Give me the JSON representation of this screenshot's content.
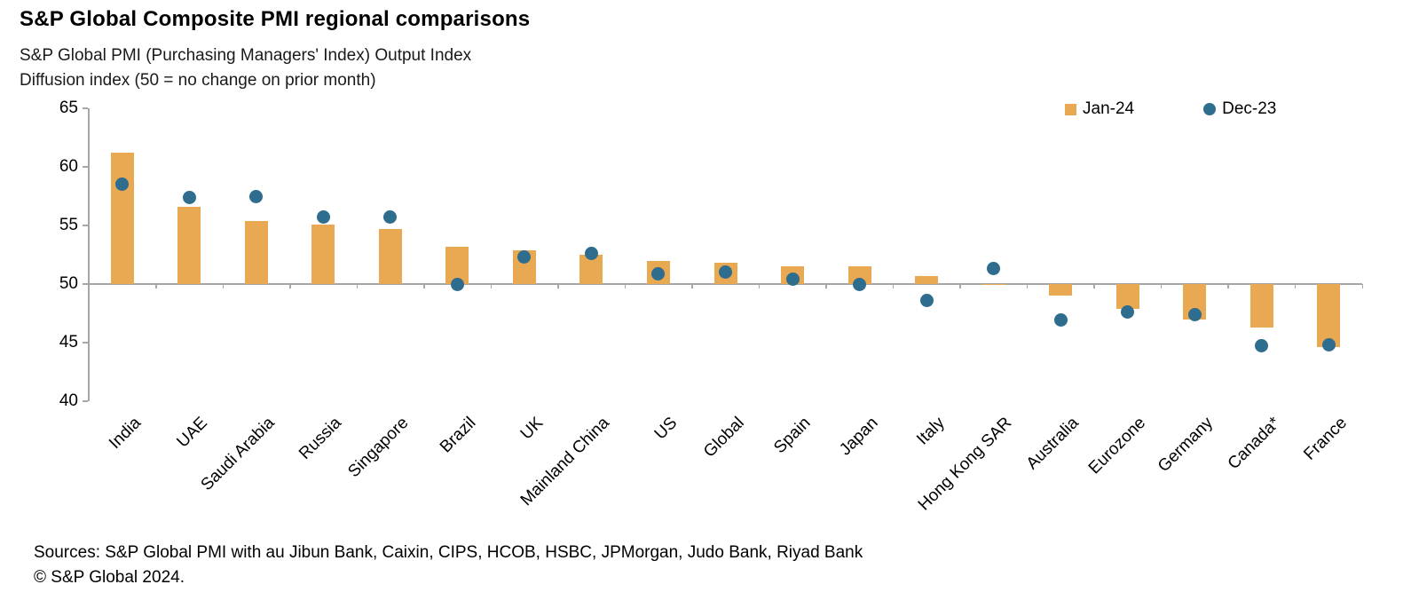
{
  "title": "S&P Global Composite PMI regional comparisons",
  "subtitle1": "S&P Global PMI (Purchasing Managers' Index) Output Index",
  "subtitle2": "Diffusion index (50 = no change on prior month)",
  "legend": {
    "series1_label": "Jan-24",
    "series2_label": "Dec-23"
  },
  "footer": {
    "sources": "Sources: S&P Global PMI with au Jibun Bank, Caixin, CIPS, HCOB, HSBC, JPMorgan, Judo Bank, Riyad Bank",
    "copyright": "© S&P Global 2024."
  },
  "colors": {
    "bar": "#E9A852",
    "dot": "#2E6D8E",
    "axis": "#A6A6A6"
  },
  "chart_data": {
    "type": "bar",
    "baseline": 50,
    "categories": [
      "India",
      "UAE",
      "Saudi Arabia",
      "Russia",
      "Singapore",
      "Brazil",
      "UK",
      "Mainland China",
      "US",
      "Global",
      "Spain",
      "Japan",
      "Italy",
      "Hong Kong SAR",
      "Australia",
      "Eurozone",
      "Germany",
      "Canada*",
      "France"
    ],
    "series": [
      {
        "name": "Jan-24",
        "mark": "bar",
        "values": [
          61.2,
          56.6,
          55.4,
          55.1,
          54.7,
          53.2,
          52.9,
          52.5,
          52.0,
          51.8,
          51.5,
          51.5,
          50.7,
          49.9,
          49.0,
          47.9,
          47.0,
          46.3,
          44.6
        ]
      },
      {
        "name": "Dec-23",
        "mark": "scatter",
        "values": [
          58.5,
          57.4,
          57.5,
          55.7,
          55.7,
          50.0,
          52.3,
          52.6,
          50.9,
          51.0,
          50.4,
          50.0,
          48.6,
          51.3,
          46.9,
          47.6,
          47.4,
          44.7,
          44.8
        ]
      }
    ],
    "ylim": [
      40,
      65
    ],
    "yticks": [
      40,
      45,
      50,
      55,
      60,
      65
    ],
    "title": "S&P Global Composite PMI regional comparisons",
    "xlabel": "",
    "ylabel": "Diffusion index (50 = no change on prior month)",
    "grid": false,
    "legend_position": "top-right"
  }
}
